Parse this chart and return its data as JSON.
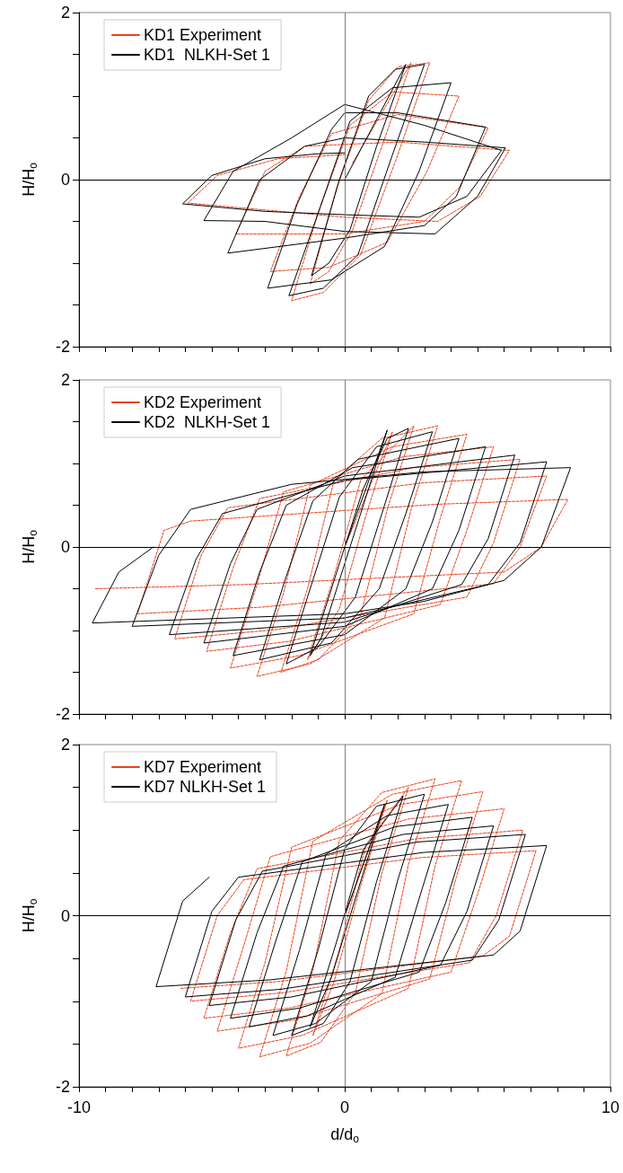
{
  "chart_data": [
    {
      "type": "line",
      "xlim": [
        -10,
        10
      ],
      "ylim": [
        -2,
        2
      ],
      "ylabel": "H/H$_{o}$",
      "tick_labels": "y",
      "grid": false,
      "legend": "top left",
      "marker": "none",
      "xticks": [
        {
          "value": -10,
          "label": null
        },
        {
          "value": -9,
          "label": null
        },
        {
          "value": -8,
          "label": null
        },
        {
          "value": -7,
          "label": null
        },
        {
          "value": -6,
          "label": null
        },
        {
          "value": -5,
          "label": null
        },
        {
          "value": -4,
          "label": null
        },
        {
          "value": -3,
          "label": null
        },
        {
          "value": -2,
          "label": null
        },
        {
          "value": -1,
          "label": null
        },
        {
          "value": 0,
          "label": null
        },
        {
          "value": 1,
          "label": null
        },
        {
          "value": 2,
          "label": null
        },
        {
          "value": 3,
          "label": null
        },
        {
          "value": 4,
          "label": null
        },
        {
          "value": 5,
          "label": null
        },
        {
          "value": 6,
          "label": null
        },
        {
          "value": 7,
          "label": null
        },
        {
          "value": 8,
          "label": null
        },
        {
          "value": 9,
          "label": null
        },
        {
          "value": 10,
          "label": null
        }
      ],
      "yticks": [
        -2,
        {
          "value": -1.5,
          "label": null
        },
        {
          "value": -1,
          "label": null
        },
        {
          "value": -0.5,
          "label": null
        },
        0,
        {
          "value": 0.5,
          "label": null
        },
        {
          "value": 1,
          "label": null
        },
        {
          "value": 1.5,
          "label": null
        },
        2
      ],
      "ref_lines": [
        {
          "axis": "x",
          "value": 0,
          "label": null,
          "color": "#808080"
        },
        {
          "axis": "y",
          "value": 0,
          "label": null,
          "color": "#000000"
        }
      ],
      "series": [
        {
          "name": "KD1 Experiment",
          "color": "#e8401c",
          "line_style": "dashed",
          "x": [
            0.3,
            2.5,
            1.4,
            0.3,
            -0.6,
            -1.3,
            -0.3,
            0.9,
            2.0,
            3.2,
            2.0,
            0.6,
            -0.8,
            -2.0,
            -1.0,
            0.2,
            1.8,
            4.3,
            3.1,
            1.6,
            -0.6,
            -2.8,
            -1.7,
            -0.5,
            2.0,
            5.4,
            4.3,
            3.0,
            0,
            -4.1,
            -3.0,
            -1.5,
            2.0,
            6.2,
            5.1,
            3.5,
            0,
            -5.9,
            -4.8,
            -2.5,
            0
          ],
          "values": [
            0.2,
            1.4,
            0.4,
            -0.6,
            -1.1,
            -1.25,
            -0.1,
            0.95,
            1.35,
            1.4,
            0.3,
            -0.9,
            -1.35,
            -1.45,
            -0.4,
            0.65,
            1.05,
            1.0,
            0.1,
            -0.75,
            -1.05,
            -1.1,
            -0.2,
            0.55,
            0.78,
            0.62,
            -0.1,
            -0.5,
            -0.65,
            -0.65,
            0.1,
            0.4,
            0.45,
            0.35,
            -0.2,
            -0.5,
            -0.45,
            -0.28,
            0.05,
            0.25,
            0.3
          ]
        },
        {
          "name": "KD1  NLKH-Set 1",
          "color": "#000000",
          "line_style": "solid",
          "x": [
            0,
            2.3,
            1.2,
            0.2,
            -0.6,
            -1.25,
            -0.2,
            0.9,
            1.9,
            3.0,
            1.8,
            0.5,
            -0.8,
            -2.1,
            -1.0,
            0.2,
            1.8,
            4.0,
            2.8,
            1.5,
            -0.5,
            -2.9,
            -1.8,
            -0.5,
            0,
            2,
            5.3,
            4.2,
            3.0,
            0,
            -4.4,
            -3.2,
            -1.5,
            0,
            3,
            6.05,
            5.0,
            3.4,
            0,
            -3,
            -5.3,
            -4.2,
            -2,
            0,
            3,
            5.9,
            4.6,
            2.8,
            0,
            -3,
            -6.1,
            -5,
            -3,
            -1,
            0
          ],
          "values": [
            0,
            1.38,
            0.4,
            -0.6,
            -1.0,
            -1.15,
            0,
            1.0,
            1.32,
            1.38,
            0.3,
            -0.9,
            -1.3,
            -1.39,
            -0.4,
            0.7,
            1.1,
            1.16,
            0.1,
            -0.8,
            -1.2,
            -1.3,
            -0.3,
            0.6,
            0.8,
            0.8,
            0.63,
            -0.2,
            -0.55,
            -0.7,
            -0.88,
            0,
            0.4,
            0.5,
            0.45,
            0.38,
            -0.2,
            -0.65,
            -0.62,
            -0.5,
            -0.49,
            0.1,
            0.5,
            0.9,
            0.65,
            0.35,
            -0.2,
            -0.45,
            -0.42,
            -0.38,
            -0.29,
            0.05,
            0.25,
            0.31,
            0.32
          ]
        }
      ]
    },
    {
      "type": "line",
      "xlim": [
        -10,
        10
      ],
      "ylim": [
        -2,
        2
      ],
      "ylabel": "H/H$_{o}$",
      "tick_labels": "y",
      "grid": false,
      "legend": "top left",
      "marker": "none",
      "xticks": [
        {
          "value": -10,
          "label": null
        },
        {
          "value": -9,
          "label": null
        },
        {
          "value": -8,
          "label": null
        },
        {
          "value": -7,
          "label": null
        },
        {
          "value": -6,
          "label": null
        },
        {
          "value": -5,
          "label": null
        },
        {
          "value": -4,
          "label": null
        },
        {
          "value": -3,
          "label": null
        },
        {
          "value": -2,
          "label": null
        },
        {
          "value": -1,
          "label": null
        },
        {
          "value": 0,
          "label": null
        },
        {
          "value": 1,
          "label": null
        },
        {
          "value": 2,
          "label": null
        },
        {
          "value": 3,
          "label": null
        },
        {
          "value": 4,
          "label": null
        },
        {
          "value": 5,
          "label": null
        },
        {
          "value": 6,
          "label": null
        },
        {
          "value": 7,
          "label": null
        },
        {
          "value": 8,
          "label": null
        },
        {
          "value": 9,
          "label": null
        },
        {
          "value": 10,
          "label": null
        }
      ],
      "yticks": [
        -2,
        {
          "value": -1.5,
          "label": null
        },
        {
          "value": -1,
          "label": null
        },
        {
          "value": -0.5,
          "label": null
        },
        0,
        {
          "value": 0.5,
          "label": null
        },
        {
          "value": 1,
          "label": null
        },
        {
          "value": 1.5,
          "label": null
        },
        2
      ],
      "ref_lines": [
        {
          "axis": "x",
          "value": 0,
          "label": null,
          "color": "#808080"
        },
        {
          "axis": "y",
          "value": 0,
          "label": null,
          "color": "#000000"
        }
      ],
      "series": [
        {
          "name": "KD2 Experiment",
          "color": "#e8401c",
          "line_style": "dashed",
          "x": [
            0,
            1.8,
            0.8,
            -0.2,
            -1.4,
            -0.4,
            0.6,
            2.6,
            1.6,
            0.6,
            -1.0,
            -2.4,
            -1.4,
            -0.4,
            1.4,
            3.5,
            2.5,
            1.5,
            -1.3,
            -3.3,
            -2.3,
            -1.3,
            1.8,
            4.6,
            3.6,
            2.6,
            -1.7,
            -4.3,
            -3.3,
            -2.3,
            2.2,
            5.6,
            4.6,
            3.6,
            -2.1,
            -5.2,
            -4.2,
            -3.2,
            2.6,
            6.6,
            5.6,
            4.6,
            -2.6,
            -6.4,
            -5.4,
            -4.4,
            3.0,
            7.6,
            6.6,
            5.6,
            -3.1,
            -7.8,
            -6.8,
            -5.8,
            3.4,
            8.4,
            7.4,
            6.0,
            -3.8,
            -9.4
          ],
          "values": [
            0,
            1.38,
            0.38,
            -0.74,
            -1.35,
            -0.35,
            0.8,
            1.45,
            0.45,
            -0.82,
            -1.35,
            -1.5,
            -0.5,
            0.8,
            1.3,
            1.45,
            0.45,
            -0.85,
            -1.4,
            -1.55,
            -0.55,
            0.74,
            1.2,
            1.35,
            0.35,
            -0.8,
            -1.3,
            -1.45,
            -0.45,
            0.66,
            1.08,
            1.2,
            0.2,
            -0.69,
            -1.13,
            -1.25,
            -0.25,
            0.58,
            0.95,
            1.05,
            0.05,
            -0.6,
            -0.99,
            -1.1,
            -0.1,
            0.47,
            0.77,
            0.85,
            0,
            -0.44,
            -0.72,
            -0.8,
            0.2,
            0.31,
            0.51,
            0.57,
            0,
            -0.3,
            -0.45,
            -0.5
          ]
        },
        {
          "name": "KD2  NLKH-Set 1",
          "color": "#000000",
          "line_style": "solid",
          "x": [
            0,
            1.6,
            0.6,
            -0.4,
            -0.9,
            -1.3,
            -0.3,
            0.7,
            1.6,
            2.4,
            1.4,
            0.4,
            -1.0,
            -2.2,
            -1.2,
            -0.2,
            1.2,
            3.3,
            2.3,
            1.3,
            -0.5,
            -3.2,
            -2.2,
            -1.2,
            0.5,
            4.3,
            3.3,
            2.3,
            0,
            -4.2,
            -3.2,
            -2.2,
            0.3,
            5.3,
            4.3,
            3.3,
            0,
            -5.3,
            -4.3,
            -3.3,
            0,
            6.4,
            5.4,
            4.4,
            0,
            -6.6,
            -5.6,
            -4.6,
            0,
            7.6,
            6.6,
            5.4,
            0,
            -8.0,
            -7.0,
            -5.8,
            -2,
            3,
            8.5,
            7.4,
            6,
            3,
            0,
            -9.5,
            -8.5,
            -7.2
          ],
          "values": [
            0,
            1.4,
            0.4,
            -0.6,
            -1.1,
            -1.3,
            -0.3,
            0.7,
            1.3,
            1.42,
            0.4,
            -0.6,
            -1.2,
            -1.4,
            -0.4,
            0.6,
            1.2,
            1.38,
            0.4,
            -0.5,
            -1.15,
            -1.35,
            -0.35,
            0.55,
            1.05,
            1.3,
            0.3,
            -0.5,
            -1.05,
            -1.3,
            -0.3,
            0.5,
            0.95,
            1.2,
            0.2,
            -0.5,
            -0.95,
            -1.15,
            -0.2,
            0.45,
            0.85,
            1.1,
            0.1,
            -0.45,
            -0.9,
            -1.05,
            -0.15,
            0.4,
            0.8,
            1.02,
            0.05,
            -0.45,
            -0.85,
            -0.95,
            -0.1,
            0.45,
            0.75,
            0.9,
            0.95,
            0,
            -0.4,
            -0.65,
            -0.8,
            -0.91,
            -0.3,
            0
          ]
        }
      ]
    },
    {
      "type": "line",
      "xlim": [
        -10,
        10
      ],
      "ylim": [
        -2,
        2
      ],
      "xlabel": "d/d$_{o}$",
      "ylabel": "H/H$_{o}$",
      "grid": false,
      "legend": "top left",
      "marker": "none",
      "xticks": [
        -10,
        {
          "value": -9,
          "label": null
        },
        {
          "value": -8,
          "label": null
        },
        {
          "value": -7,
          "label": null
        },
        {
          "value": -6,
          "label": null
        },
        {
          "value": -5,
          "label": null
        },
        {
          "value": -4,
          "label": null
        },
        {
          "value": -3,
          "label": null
        },
        {
          "value": -2,
          "label": null
        },
        {
          "value": -1,
          "label": null
        },
        0,
        {
          "value": 1,
          "label": null
        },
        {
          "value": 2,
          "label": null
        },
        {
          "value": 3,
          "label": null
        },
        {
          "value": 4,
          "label": null
        },
        {
          "value": 5,
          "label": null
        },
        {
          "value": 6,
          "label": null
        },
        {
          "value": 7,
          "label": null
        },
        {
          "value": 8,
          "label": null
        },
        {
          "value": 9,
          "label": null
        },
        10
      ],
      "yticks": [
        -2,
        {
          "value": -1.5,
          "label": null
        },
        {
          "value": -1,
          "label": null
        },
        {
          "value": -0.5,
          "label": null
        },
        0,
        {
          "value": 0.5,
          "label": null
        },
        {
          "value": 1,
          "label": null
        },
        {
          "value": 1.5,
          "label": null
        },
        2
      ],
      "ref_lines": [
        {
          "axis": "x",
          "value": 0,
          "label": null,
          "color": "#808080"
        },
        {
          "axis": "y",
          "value": 0,
          "label": null,
          "color": "#000000"
        }
      ],
      "series": [
        {
          "name": "KD7 Experiment",
          "color": "#e8401c",
          "line_style": "dashed",
          "x": [
            0,
            1.6,
            0.6,
            -0.4,
            -1.2,
            -0.2,
            0.8,
            2.4,
            1.4,
            0.4,
            -0.9,
            -2.2,
            -1.2,
            -0.2,
            1.4,
            3.4,
            2.4,
            1.4,
            -1.3,
            -3.2,
            -2.2,
            -1.2,
            1.8,
            4.4,
            3.4,
            2.4,
            -1.6,
            -4.0,
            -3.0,
            -2.0,
            2.1,
            5.2,
            4.2,
            3.2,
            -1.9,
            -4.8,
            -3.8,
            -2.8,
            2.4,
            6.0,
            5.0,
            4.0,
            -2.1,
            -5.3,
            -4.3,
            -3.3,
            2.7,
            6.7,
            5.7,
            4.7,
            -2.3,
            -5.8,
            -4.8,
            -3.8,
            2.9,
            7.2,
            6.2,
            5.2,
            -2.5,
            -6.2
          ],
          "values": [
            0,
            1.35,
            0.35,
            -0.77,
            -1.4,
            -0.4,
            0.83,
            1.5,
            0.5,
            -0.9,
            -1.48,
            -1.64,
            -0.64,
            0.88,
            1.44,
            1.6,
            0.6,
            -0.91,
            -1.49,
            -1.65,
            -0.65,
            0.87,
            1.42,
            1.58,
            0.58,
            -0.85,
            -1.4,
            -1.55,
            -0.55,
            0.8,
            1.3,
            1.45,
            0.45,
            -0.74,
            -1.22,
            -1.35,
            -0.35,
            0.69,
            1.13,
            1.25,
            0.25,
            -0.66,
            -1.08,
            -1.2,
            -0.2,
            0.55,
            0.9,
            1.0,
            0,
            -0.55,
            -0.9,
            -1.0,
            0,
            0.42,
            0.68,
            0.76,
            -0.24,
            -0.47,
            -0.77,
            -0.85
          ]
        },
        {
          "name": "KD7 NLKH-Set 1",
          "color": "#000000",
          "line_style": "solid",
          "x": [
            0,
            1.5,
            0.5,
            -0.5,
            -1.3,
            -0.3,
            0.7,
            2.2,
            1.2,
            0.2,
            -0.8,
            -2.0,
            -1.0,
            0,
            1.2,
            3.0,
            2.0,
            1.0,
            -1.1,
            -2.7,
            -1.7,
            -0.7,
            1.6,
            3.9,
            2.9,
            1.9,
            -1.4,
            -3.6,
            -2.6,
            -1.6,
            1.9,
            4.8,
            3.8,
            2.8,
            -1.7,
            -4.3,
            -3.3,
            -2.3,
            2.2,
            5.6,
            4.6,
            3.6,
            -2.0,
            -5.1,
            -4.1,
            -3.1,
            2.7,
            6.8,
            5.8,
            4.8,
            -2.4,
            -6.0,
            -5.0,
            -4.0,
            3.0,
            7.6,
            6.6,
            5.6,
            -2.8,
            -7.1,
            -6.1,
            -5.1
          ],
          "values": [
            0,
            1.3,
            0.3,
            -0.72,
            -1.3,
            -0.3,
            0.77,
            1.4,
            0.4,
            -0.77,
            -1.26,
            -1.4,
            -0.4,
            0.78,
            1.28,
            1.42,
            0.42,
            -0.77,
            -1.26,
            -1.4,
            -0.4,
            0.72,
            1.17,
            1.3,
            0.3,
            -0.72,
            -1.17,
            -1.3,
            -0.3,
            0.63,
            1.04,
            1.15,
            0.15,
            -0.66,
            -1.08,
            -1.2,
            -0.2,
            0.58,
            0.95,
            1.05,
            0.05,
            -0.58,
            -0.95,
            -1.05,
            -0.05,
            0.52,
            0.86,
            0.95,
            -0.05,
            -0.52,
            -0.86,
            -0.95,
            0.05,
            0.45,
            0.74,
            0.82,
            -0.18,
            -0.46,
            -0.75,
            -0.83,
            0.17,
            0.45
          ]
        }
      ]
    }
  ]
}
